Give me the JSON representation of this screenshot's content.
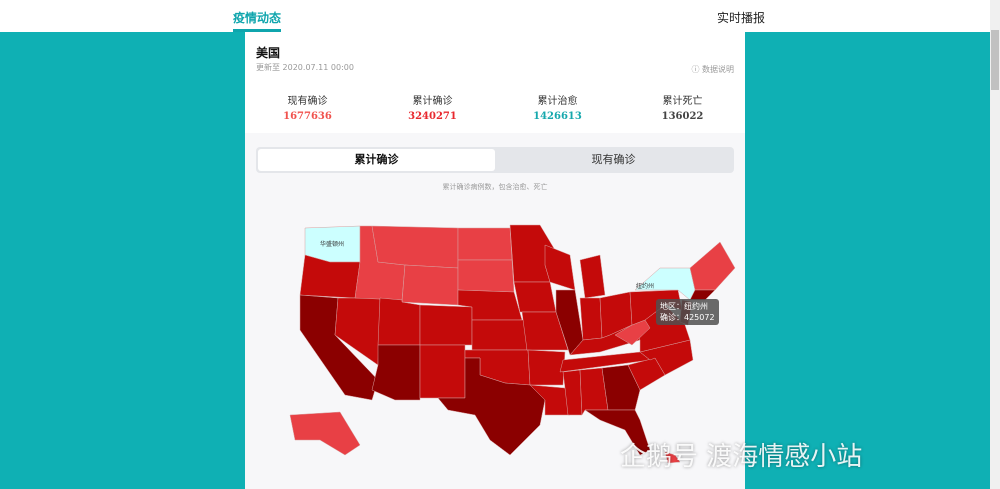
{
  "nav": {
    "tabs": [
      {
        "label": "疫情动态",
        "active": true
      },
      {
        "label": "实时播报",
        "active": false
      }
    ]
  },
  "header": {
    "country": "美国",
    "updated": "更新至 2020.07.11 00:00",
    "data_note": "数据说明",
    "help_icon": "question-circle-icon"
  },
  "stats": [
    {
      "label": "现有确诊",
      "value": "1677636",
      "color": "#f0524d"
    },
    {
      "label": "累计确诊",
      "value": "3240271",
      "color": "#e8282e"
    },
    {
      "label": "累计治愈",
      "value": "1426613",
      "color": "#16a8ad"
    },
    {
      "label": "累计死亡",
      "value": "136022",
      "color": "#444444"
    }
  ],
  "segment": {
    "options": [
      "累计确诊",
      "现有确诊"
    ],
    "selected": "累计确诊"
  },
  "map": {
    "note": "累计确诊病例数，包含治愈、死亡",
    "labels": {
      "wa": "华盛顿州",
      "ny": "纽约州"
    },
    "tooltip": {
      "region_label": "地区：",
      "region": "纽约州",
      "count_label": "确诊：",
      "count": "425072"
    },
    "colors": {
      "lowest": "#ccffff",
      "low": "#e84045",
      "mid": "#c40a0a",
      "high": "#8b0000"
    }
  },
  "watermark": "企鹅号 渡海情感小站"
}
